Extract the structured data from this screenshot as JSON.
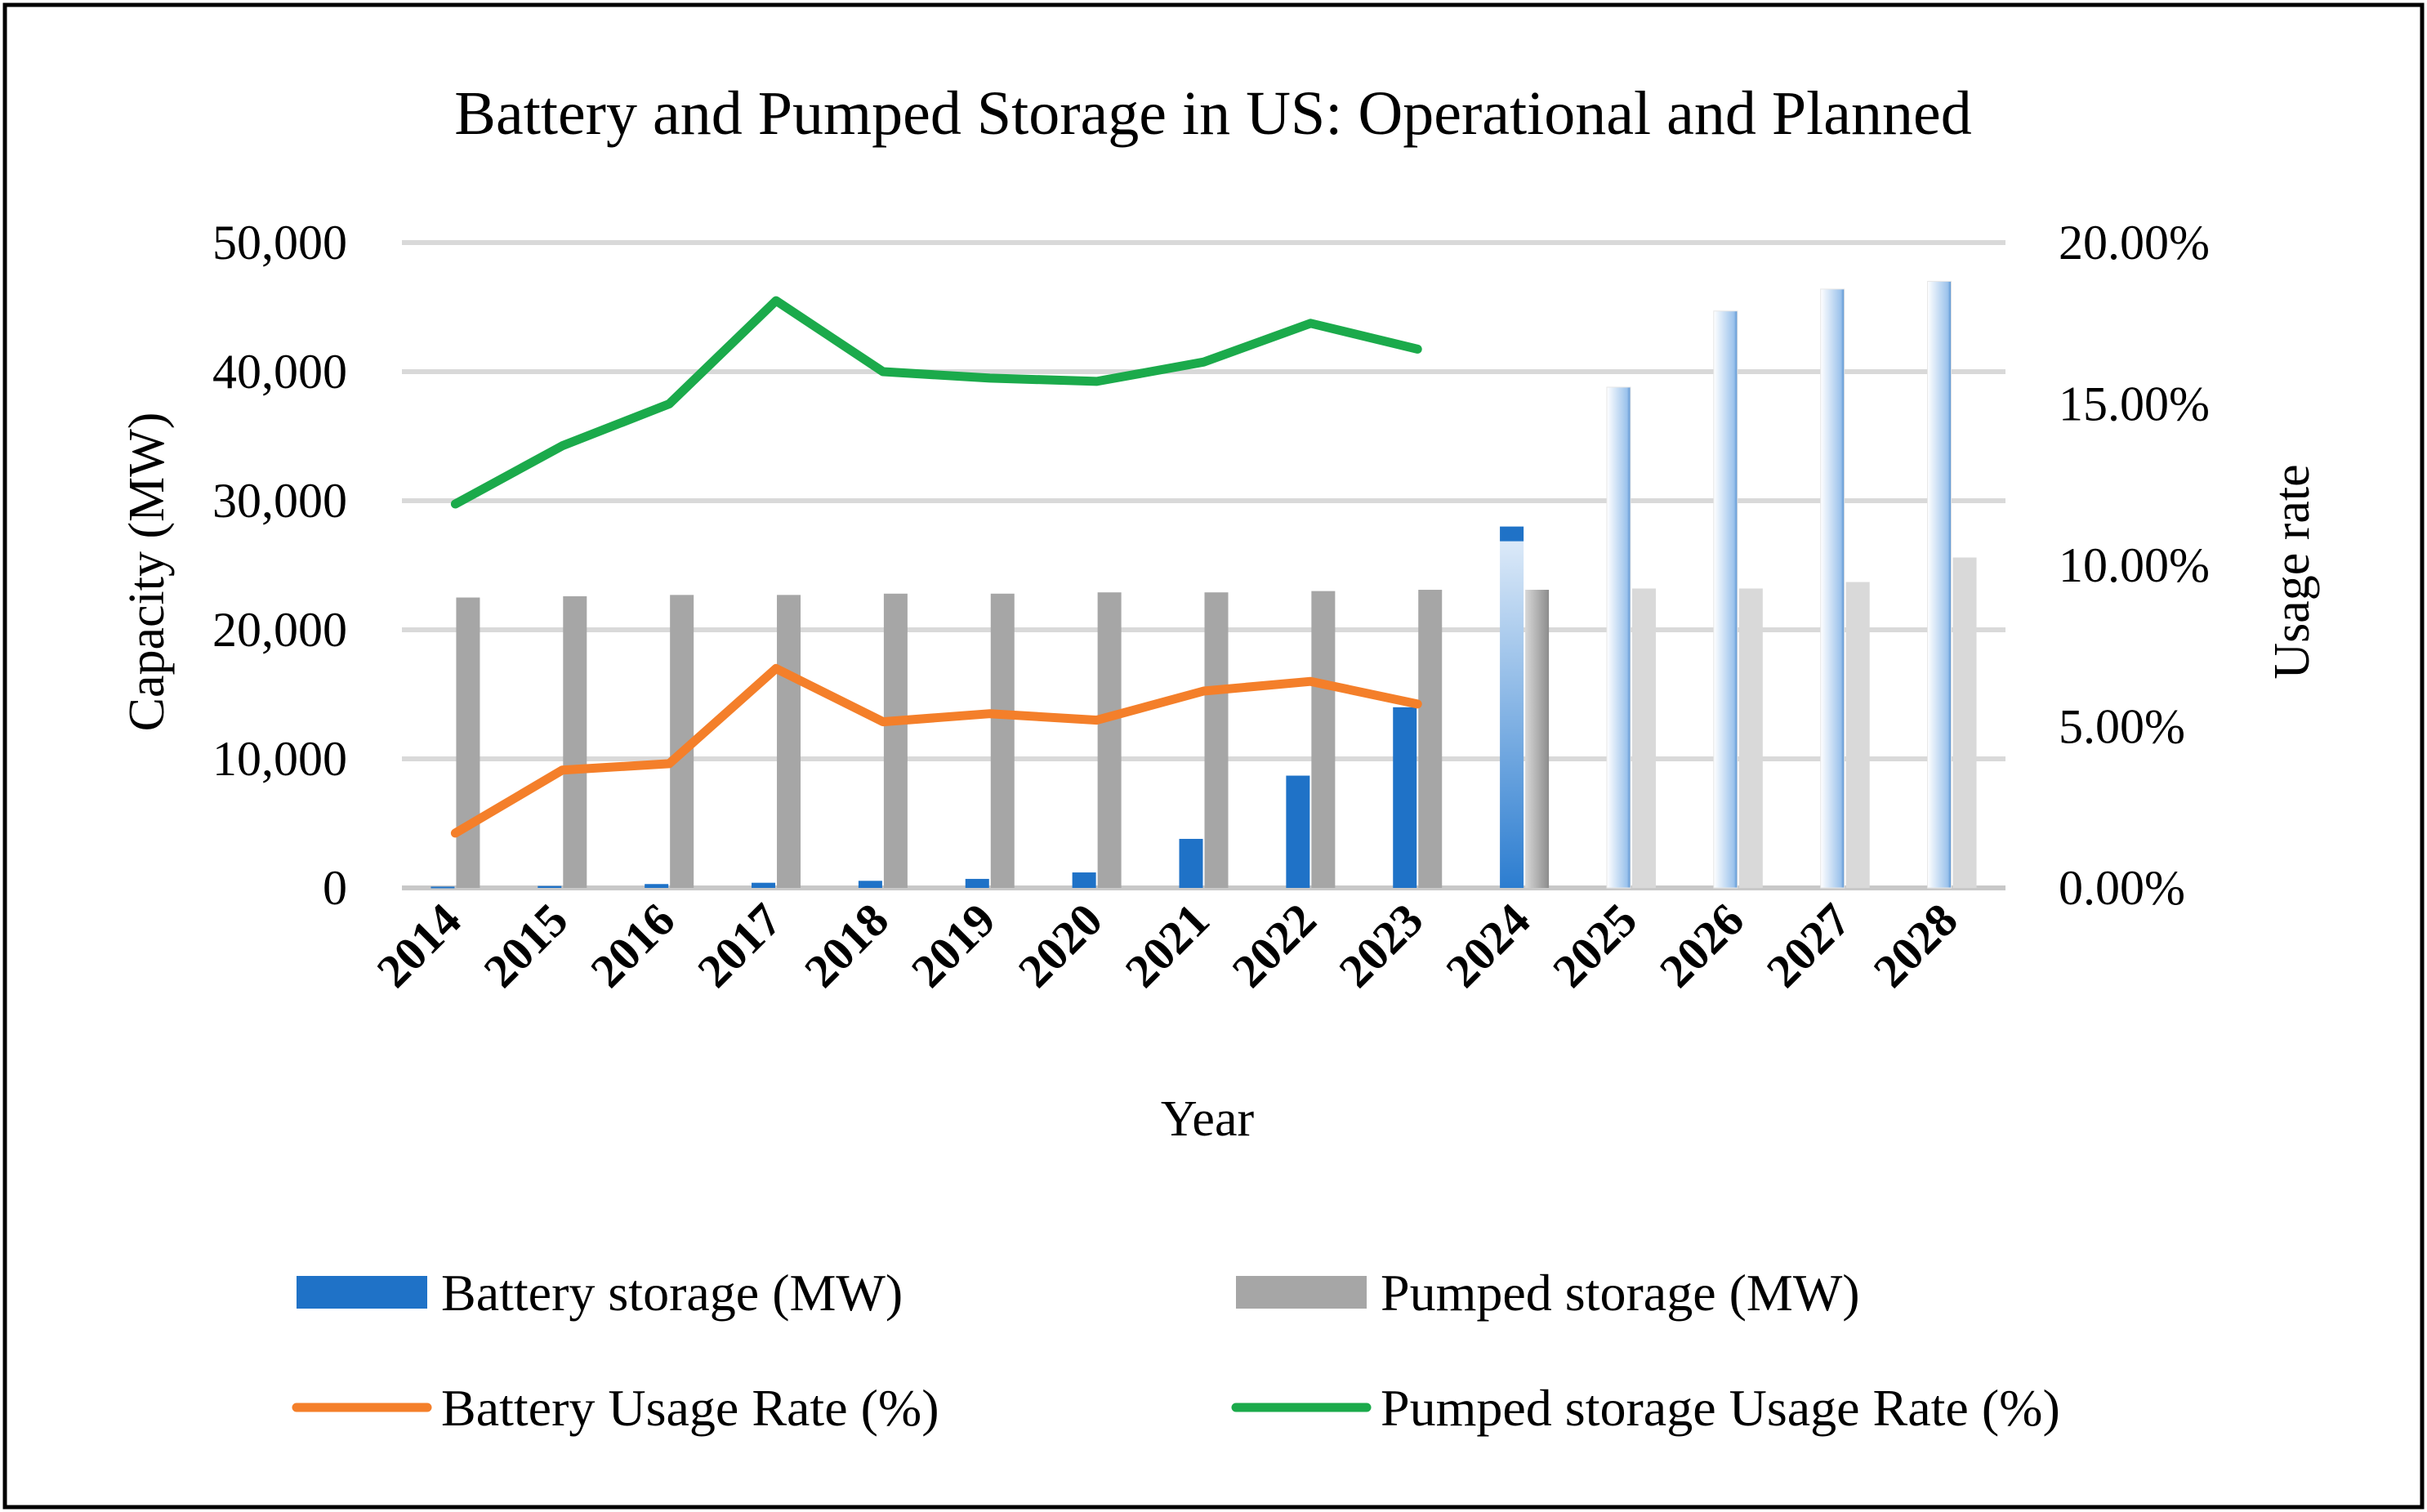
{
  "chart_data": {
    "type": "bar",
    "title": "Battery and Pumped Storage in US: Operational and Planned",
    "xlabel": "Year",
    "ylabel": "Capacity (MW)",
    "y2label": "Usage rate",
    "categories": [
      "2014",
      "2015",
      "2016",
      "2017",
      "2018",
      "2019",
      "2020",
      "2021",
      "2022",
      "2023",
      "2024",
      "2025",
      "2026",
      "2027",
      "2028"
    ],
    "planned_from": "2024",
    "ylim": [
      0,
      50000
    ],
    "y2lim": [
      0,
      0.2
    ],
    "yticks": [
      "0",
      "10,000",
      "20,000",
      "30,000",
      "40,000",
      "50,000"
    ],
    "y2ticks": [
      "0.00%",
      "5.00%",
      "10.00%",
      "15.00%",
      "20.00%"
    ],
    "grid": true,
    "legend_position": "bottom",
    "series": [
      {
        "name": "Battery storage (MW)",
        "kind": "bar",
        "color": "#1F72C7",
        "values": [
          100,
          150,
          300,
          400,
          550,
          700,
          1200,
          3800,
          8700,
          14000,
          28000,
          38800,
          44700,
          46400,
          47000
        ]
      },
      {
        "name": "Pumped storage (MW)",
        "kind": "bar",
        "color": "#A6A6A6",
        "values": [
          22500,
          22600,
          22700,
          22700,
          22800,
          22800,
          22900,
          22900,
          23000,
          23100,
          23100,
          23200,
          23200,
          23700,
          25600
        ]
      },
      {
        "name": "Battery Usage Rate (%)",
        "kind": "line",
        "axis": "right",
        "color": "#F47F2A",
        "values": [
          0.017,
          0.0365,
          0.0385,
          0.068,
          0.0515,
          0.054,
          0.052,
          0.061,
          0.064,
          0.057,
          null,
          null,
          null,
          null,
          null
        ]
      },
      {
        "name": "Pumped storage Usage Rate (%)",
        "kind": "line",
        "axis": "right",
        "color": "#1BAA4B",
        "values": [
          0.119,
          0.137,
          0.15,
          0.182,
          0.16,
          0.158,
          0.157,
          0.163,
          0.175,
          0.167,
          null,
          null,
          null,
          null,
          null
        ]
      }
    ]
  }
}
